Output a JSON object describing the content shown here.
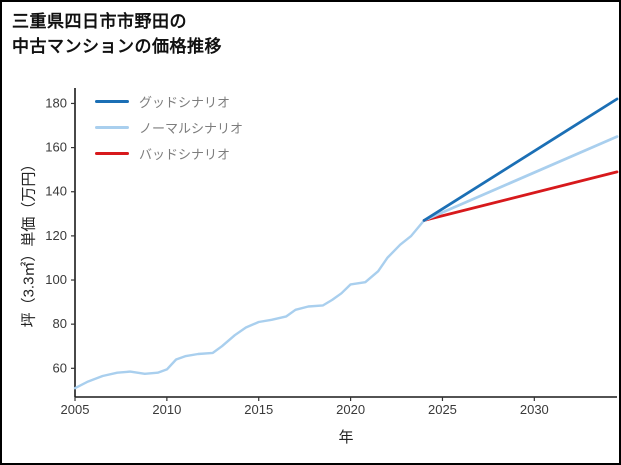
{
  "title": {
    "line1": "三重県四日市市野田の",
    "line2": "中古マンションの価格推移"
  },
  "legend": {
    "items": [
      {
        "id": "good-scenario",
        "label": "グッドシナリオ",
        "color": "#1b6fb5"
      },
      {
        "id": "normal-scenario",
        "label": "ノーマルシナリオ",
        "color": "#a9cfee"
      },
      {
        "id": "bad-scenario",
        "label": "バッドシナリオ",
        "color": "#d7191c"
      }
    ]
  },
  "chart_data": {
    "type": "line",
    "title": "三重県四日市市野田の中古マンションの価格推移",
    "xlabel": "年",
    "ylabel": "坪（3.3㎡）単価（万円）",
    "xlim": [
      2005,
      2034.5
    ],
    "ylim": [
      47,
      187
    ],
    "x_ticks": [
      2005,
      2010,
      2015,
      2020,
      2025,
      2030
    ],
    "y_ticks": [
      60,
      80,
      100,
      120,
      140,
      160,
      180
    ],
    "grid": false,
    "legend_position": "upper left",
    "series": [
      {
        "id": "price-history",
        "name": "price-history",
        "color": "#a9cfee",
        "width": 2.4,
        "in_legend": false,
        "x": [
          2005,
          2005.7,
          2006.5,
          2007.3,
          2008,
          2008.8,
          2009.5,
          2010,
          2010.5,
          2011,
          2011.7,
          2012.5,
          2013,
          2013.7,
          2014.3,
          2015,
          2015.7,
          2016.5,
          2017,
          2017.7,
          2018.5,
          2019,
          2019.5,
          2020,
          2020.8,
          2021.5,
          2022,
          2022.7,
          2023.3,
          2024
        ],
        "y": [
          51,
          54,
          56.5,
          58,
          58.5,
          57.5,
          58,
          59.5,
          64,
          65.5,
          66.5,
          67,
          70,
          75,
          78.5,
          81,
          82,
          83.5,
          86.5,
          88,
          88.5,
          91,
          94,
          98,
          99,
          104,
          110,
          116,
          120,
          127
        ]
      },
      {
        "id": "bad-scenario",
        "name": "バッドシナリオ",
        "color": "#d7191c",
        "width": 2.8,
        "in_legend": true,
        "x": [
          2024,
          2034.5
        ],
        "y": [
          127,
          149
        ]
      },
      {
        "id": "normal-scenario",
        "name": "ノーマルシナリオ",
        "color": "#a9cfee",
        "width": 2.8,
        "in_legend": true,
        "x": [
          2024,
          2034.5
        ],
        "y": [
          127,
          165
        ]
      },
      {
        "id": "good-scenario",
        "name": "グッドシナリオ",
        "color": "#1b6fb5",
        "width": 2.8,
        "in_legend": true,
        "x": [
          2024,
          2034.5
        ],
        "y": [
          127,
          182
        ]
      }
    ]
  }
}
